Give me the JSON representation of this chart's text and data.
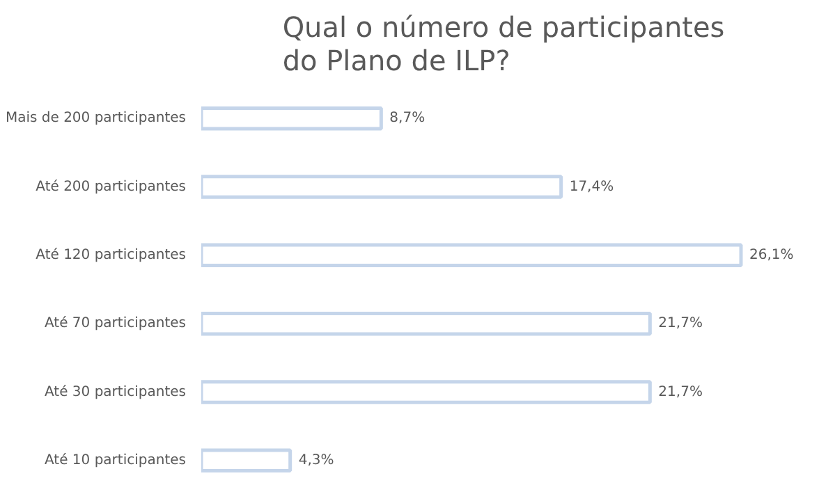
{
  "chart_data": {
    "type": "bar",
    "orientation": "horizontal",
    "title": "Qual o número de participantes\ndo Plano de ILP?",
    "categories": [
      "Mais de 200 participantes",
      "Até 200 participantes",
      "Até 120 participantes",
      "Até 70 participantes",
      "Até 30 participantes",
      "Até 10 participantes"
    ],
    "values": [
      8.7,
      17.4,
      26.1,
      21.7,
      21.7,
      4.3
    ],
    "value_labels": [
      "8,7%",
      "17,4%",
      "26,1%",
      "21,7%",
      "21,7%",
      "4,3%"
    ],
    "tick_labels": "y",
    "color": "#c5d5ea",
    "grid": false
  }
}
